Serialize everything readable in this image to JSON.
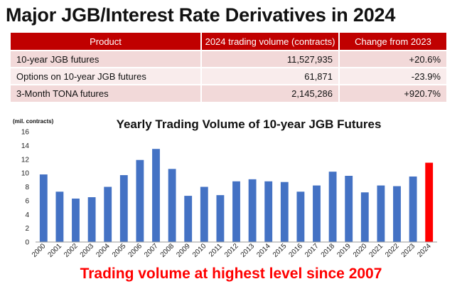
{
  "title": "Major JGB/Interest Rate Derivatives in 2024",
  "table": {
    "headers": [
      "Product",
      "2024 trading volume (contracts)",
      "Change from 2023"
    ],
    "rows": [
      {
        "product": "10-year JGB futures",
        "volume": "11,527,935",
        "change": "+20.6%"
      },
      {
        "product": "Options on 10-year JGB futures",
        "volume": "61,871",
        "change": "-23.9%"
      },
      {
        "product": "3-Month TONA futures",
        "volume": "2,145,286",
        "change": "+920.7%"
      }
    ]
  },
  "chart_data": {
    "type": "bar",
    "title": "Yearly Trading Volume of 10-year JGB Futures",
    "unit_label": "(mil. contracts)",
    "ylim": [
      0,
      16
    ],
    "yticks": [
      0,
      2,
      4,
      6,
      8,
      10,
      12,
      14,
      16
    ],
    "categories": [
      "2000",
      "2001",
      "2002",
      "2003",
      "2004",
      "2005",
      "2006",
      "2007",
      "2008",
      "2009",
      "2010",
      "2011",
      "2012",
      "2013",
      "2014",
      "2015",
      "2016",
      "2017",
      "2018",
      "2019",
      "2020",
      "2021",
      "2022",
      "2023",
      "2024"
    ],
    "values": [
      9.8,
      7.3,
      6.3,
      6.5,
      8.0,
      9.7,
      11.9,
      13.5,
      10.6,
      6.7,
      8.0,
      6.8,
      8.8,
      9.1,
      8.8,
      8.7,
      7.3,
      8.2,
      10.2,
      9.6,
      7.2,
      8.2,
      8.1,
      9.5,
      11.5
    ],
    "colors": {
      "default": "#4472c4",
      "highlight": "#ff0000"
    },
    "highlight_category": "2024",
    "grid": false,
    "legend": "none"
  },
  "footer": "Trading volume at highest level since 2007"
}
